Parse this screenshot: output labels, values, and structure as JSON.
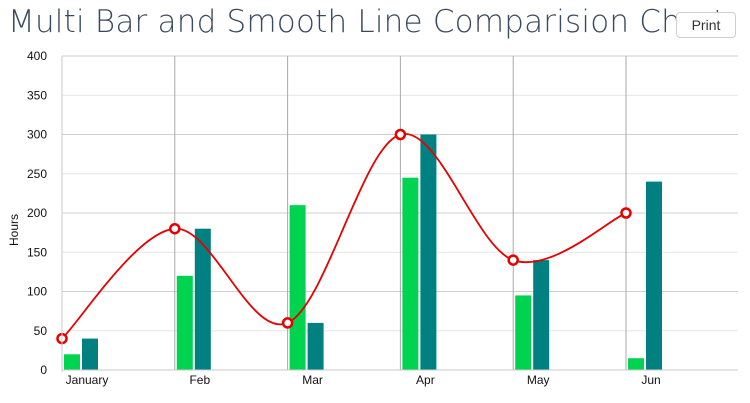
{
  "page": {
    "title": "Multi Bar and Smooth Line Comparision Chart",
    "print_label": "Print"
  },
  "chart_data": {
    "type": "bar",
    "categories": [
      "January",
      "Feb",
      "Mar",
      "Apr",
      "May",
      "Jun"
    ],
    "series": [
      {
        "type": "bar",
        "color": "#00d350",
        "values": [
          20,
          120,
          210,
          245,
          95,
          15
        ]
      },
      {
        "type": "bar",
        "color": "#008080",
        "values": [
          40,
          180,
          60,
          300,
          140,
          240
        ]
      },
      {
        "type": "line",
        "smooth": true,
        "color": "#e60000",
        "values": [
          40,
          180,
          60,
          300,
          140,
          200
        ]
      }
    ],
    "title": "Multi Bar and Smooth Line Comparision Chart",
    "xlabel": "",
    "ylabel": "Hours",
    "ylim": [
      0,
      400
    ],
    "yticks": [
      0,
      50,
      100,
      150,
      200,
      250,
      300,
      350,
      400
    ],
    "grid": true
  }
}
